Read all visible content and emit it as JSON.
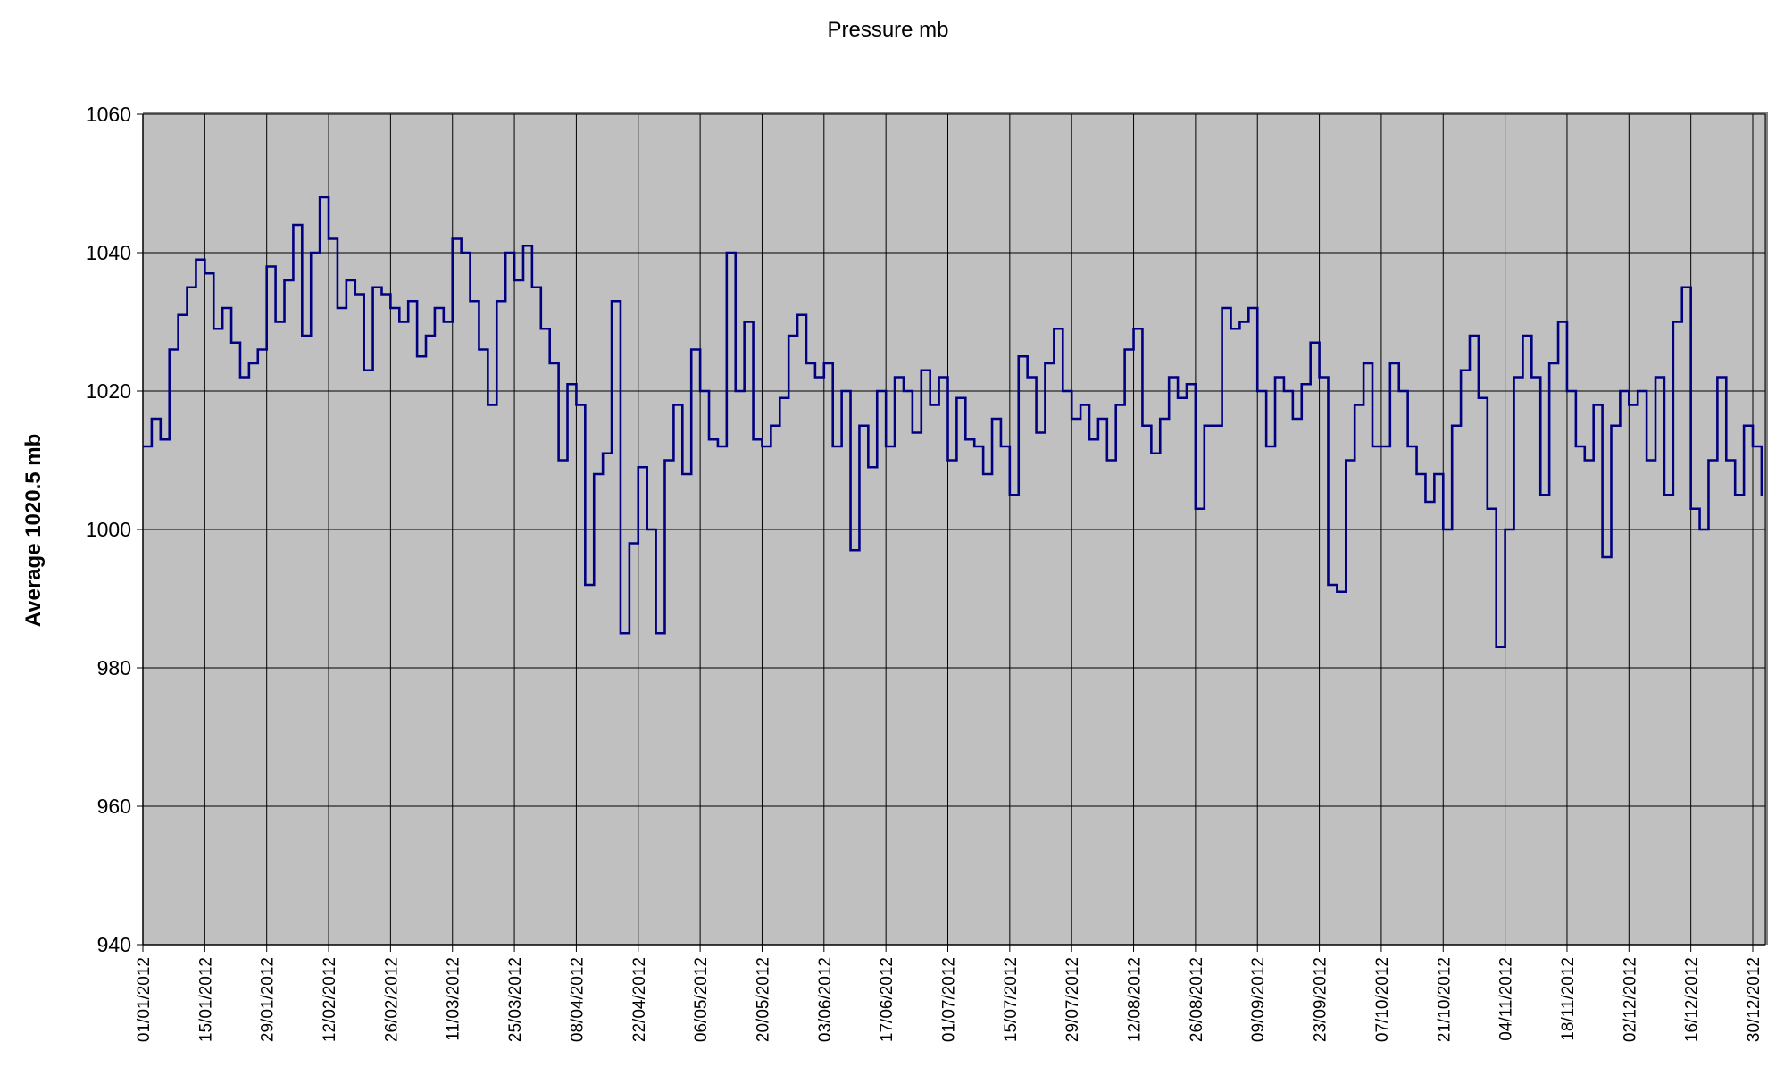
{
  "chart_data": {
    "type": "line",
    "title": "Pressure mb",
    "xlabel": "",
    "ylabel": "Average 1020.5 mb",
    "ylim": [
      940,
      1060
    ],
    "yticks": [
      940,
      960,
      980,
      1000,
      1020,
      1040,
      1060
    ],
    "xlim_days": [
      0,
      366.8
    ],
    "grid": true,
    "legend": "none",
    "line_style": "step",
    "colors": {
      "line": "#000080",
      "plot_bg": "#C0C0C0",
      "grid": "#000000",
      "frame": "#808080"
    },
    "xtick_labels": [
      "01/01/2012",
      "15/01/2012",
      "29/01/2012",
      "12/02/2012",
      "26/02/2012",
      "11/03/2012",
      "25/03/2012",
      "08/04/2012",
      "22/04/2012",
      "06/05/2012",
      "20/05/2012",
      "03/06/2012",
      "17/06/2012",
      "01/07/2012",
      "15/07/2012",
      "29/07/2012",
      "12/08/2012",
      "26/08/2012",
      "09/09/2012",
      "23/09/2012",
      "07/10/2012",
      "21/10/2012",
      "04/11/2012",
      "18/11/2012",
      "02/12/2012",
      "16/12/2012",
      "30/12/2012"
    ],
    "series": [
      {
        "name": "Pressure mb",
        "x_day_step": 2,
        "values": [
          1012,
          1016,
          1013,
          1026,
          1031,
          1035,
          1039,
          1037,
          1029,
          1032,
          1027,
          1022,
          1024,
          1026,
          1038,
          1030,
          1036,
          1044,
          1028,
          1040,
          1048,
          1042,
          1032,
          1036,
          1034,
          1023,
          1035,
          1034,
          1032,
          1030,
          1033,
          1025,
          1028,
          1032,
          1030,
          1042,
          1040,
          1033,
          1026,
          1018,
          1033,
          1040,
          1036,
          1041,
          1035,
          1029,
          1024,
          1010,
          1021,
          1018,
          992,
          1008,
          1011,
          1033,
          985,
          998,
          1009,
          1000,
          985,
          1010,
          1018,
          1008,
          1026,
          1020,
          1013,
          1012,
          1040,
          1020,
          1030,
          1013,
          1012,
          1015,
          1019,
          1028,
          1031,
          1024,
          1022,
          1024,
          1012,
          1020,
          997,
          1015,
          1009,
          1020,
          1012,
          1022,
          1020,
          1014,
          1023,
          1018,
          1022,
          1010,
          1019,
          1013,
          1012,
          1008,
          1016,
          1012,
          1005,
          1025,
          1022,
          1014,
          1024,
          1029,
          1020,
          1016,
          1018,
          1013,
          1016,
          1010,
          1018,
          1026,
          1029,
          1015,
          1011,
          1016,
          1022,
          1019,
          1021,
          1003,
          1015,
          1015,
          1032,
          1029,
          1030,
          1032,
          1020,
          1012,
          1022,
          1020,
          1016,
          1021,
          1027,
          1022,
          992,
          991,
          1010,
          1018,
          1024,
          1012,
          1012,
          1024,
          1020,
          1012,
          1008,
          1004,
          1008,
          1000,
          1015,
          1023,
          1028,
          1019,
          1003,
          983,
          1000,
          1022,
          1028,
          1022,
          1005,
          1024,
          1030,
          1020,
          1012,
          1010,
          1018,
          996,
          1015,
          1020,
          1018,
          1020,
          1010,
          1022,
          1005,
          1030,
          1035,
          1003,
          1000,
          1010,
          1022,
          1010,
          1005,
          1015,
          1012,
          1005
        ]
      }
    ]
  }
}
